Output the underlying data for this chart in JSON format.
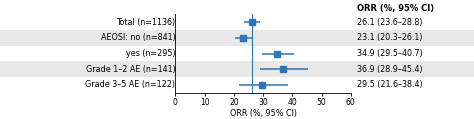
{
  "rows": [
    {
      "label": "Total (n=1136)",
      "estimate": 26.1,
      "ci_lo": 23.6,
      "ci_hi": 28.8,
      "ci_text": "26.1 (23.6–28.8)",
      "bg": "#ffffff"
    },
    {
      "label": "AEOSI: no (n=841)",
      "estimate": 23.1,
      "ci_lo": 20.3,
      "ci_hi": 26.1,
      "ci_text": "23.1 (20.3–26.1)",
      "bg": "#e8e8e8"
    },
    {
      "label": "yes (n=295)",
      "estimate": 34.9,
      "ci_lo": 29.5,
      "ci_hi": 40.7,
      "ci_text": "34.9 (29.5–40.7)",
      "bg": "#ffffff"
    },
    {
      "label": "Grade 1–2 AE (n=141)",
      "estimate": 36.9,
      "ci_lo": 28.9,
      "ci_hi": 45.4,
      "ci_text": "36.9 (28.9–45.4)",
      "bg": "#e8e8e8"
    },
    {
      "label": "Grade 3–5 AE (n=122)",
      "estimate": 29.5,
      "ci_lo": 21.6,
      "ci_hi": 38.4,
      "ci_text": "29.5 (21.6–38.4)",
      "bg": "#ffffff"
    }
  ],
  "xlim": [
    0,
    60
  ],
  "xticks": [
    0,
    10,
    20,
    30,
    40,
    50,
    60
  ],
  "xlabel": "ORR (%, 95% CI)",
  "col_header": "ORR (%, 95% CI)",
  "vline_x": 26.1,
  "marker_color": "#2e75b6",
  "marker_size": 4.5,
  "ci_lw": 1.1,
  "label_fontsize": 5.8,
  "tick_fontsize": 5.5,
  "header_fontsize": 6.0,
  "ci_text_fontsize": 5.8,
  "bg_colors": [
    "#ffffff",
    "#e8e8e8",
    "#ffffff",
    "#e8e8e8",
    "#ffffff"
  ]
}
